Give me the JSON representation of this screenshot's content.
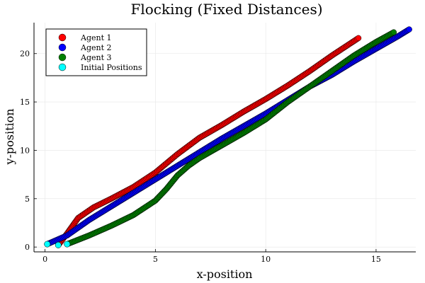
{
  "chart_data": {
    "type": "scatter",
    "title": "Flocking (Fixed Distances)",
    "xlabel": "x-position",
    "ylabel": "y-position",
    "xlim": [
      -0.5,
      16.8
    ],
    "ylim": [
      -0.5,
      23.2
    ],
    "xticks": [
      0,
      5,
      10,
      15
    ],
    "yticks": [
      0,
      5,
      10,
      15,
      20
    ],
    "grid": true,
    "legend_position": "top-left",
    "series": [
      {
        "name": "Agent 1",
        "color": "#ff0000",
        "points": [
          [
            0.6,
            0.2
          ],
          [
            1.0,
            1.4
          ],
          [
            1.5,
            3.0
          ],
          [
            2.2,
            4.1
          ],
          [
            3.0,
            5.0
          ],
          [
            4.0,
            6.2
          ],
          [
            5.0,
            7.7
          ],
          [
            6.0,
            9.6
          ],
          [
            7.0,
            11.3
          ],
          [
            8.0,
            12.6
          ],
          [
            9.0,
            14.0
          ],
          [
            10.0,
            15.3
          ],
          [
            11.0,
            16.7
          ],
          [
            12.0,
            18.2
          ],
          [
            13.0,
            19.8
          ],
          [
            14.2,
            21.6
          ]
        ]
      },
      {
        "name": "Agent 2",
        "color": "#0000ff",
        "points": [
          [
            0.1,
            0.3
          ],
          [
            1.0,
            1.2
          ],
          [
            2.0,
            2.8
          ],
          [
            3.0,
            4.2
          ],
          [
            4.0,
            5.6
          ],
          [
            5.0,
            7.0
          ],
          [
            6.0,
            8.4
          ],
          [
            7.0,
            9.8
          ],
          [
            8.0,
            11.2
          ],
          [
            9.0,
            12.5
          ],
          [
            10.0,
            13.8
          ],
          [
            11.0,
            15.2
          ],
          [
            12.0,
            16.6
          ],
          [
            13.0,
            17.8
          ],
          [
            14.0,
            19.2
          ],
          [
            15.0,
            20.5
          ],
          [
            16.0,
            21.8
          ],
          [
            16.5,
            22.5
          ]
        ]
      },
      {
        "name": "Agent 3",
        "color": "#008000",
        "points": [
          [
            1.0,
            0.3
          ],
          [
            2.0,
            1.2
          ],
          [
            3.0,
            2.2
          ],
          [
            4.0,
            3.3
          ],
          [
            5.0,
            4.8
          ],
          [
            5.5,
            6.0
          ],
          [
            6.0,
            7.4
          ],
          [
            6.5,
            8.4
          ],
          [
            7.0,
            9.2
          ],
          [
            8.0,
            10.5
          ],
          [
            9.0,
            11.8
          ],
          [
            10.0,
            13.2
          ],
          [
            11.0,
            15.0
          ],
          [
            12.0,
            16.6
          ],
          [
            13.0,
            18.2
          ],
          [
            14.0,
            19.8
          ],
          [
            15.0,
            21.2
          ],
          [
            15.8,
            22.2
          ]
        ]
      }
    ],
    "initial_positions": {
      "name": "Initial Positions",
      "color": "#00ffff",
      "points": [
        [
          0.6,
          0.2
        ],
        [
          0.1,
          0.3
        ],
        [
          1.0,
          0.3
        ]
      ]
    }
  }
}
